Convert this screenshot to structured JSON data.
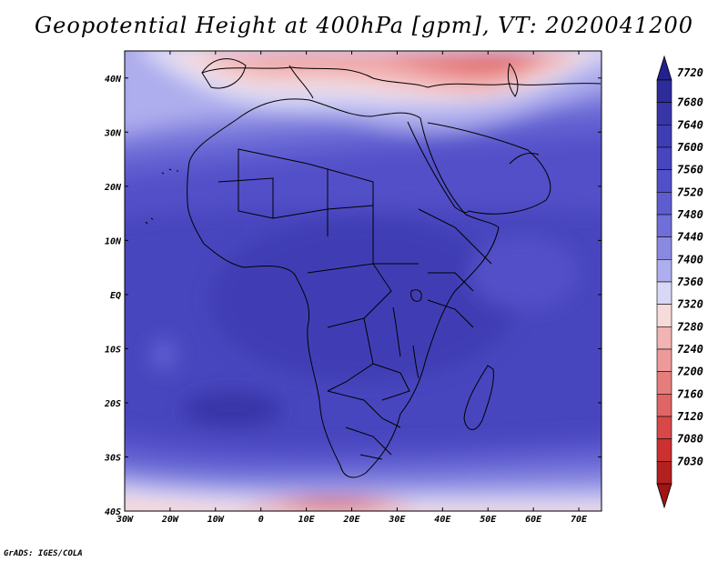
{
  "title": "Geopotential Height at 400hPa [gpm], VT: 2020041200",
  "credit": "GrADS: IGES/COLA",
  "map": {
    "lon_range": [
      -30,
      75
    ],
    "lat_range": [
      -40,
      45
    ],
    "lon_ticks": [
      {
        "value": -30,
        "label": "30W"
      },
      {
        "value": -20,
        "label": "20W"
      },
      {
        "value": -10,
        "label": "10W"
      },
      {
        "value": 0,
        "label": "0"
      },
      {
        "value": 10,
        "label": "10E"
      },
      {
        "value": 20,
        "label": "20E"
      },
      {
        "value": 30,
        "label": "30E"
      },
      {
        "value": 40,
        "label": "40E"
      },
      {
        "value": 50,
        "label": "50E"
      },
      {
        "value": 60,
        "label": "60E"
      },
      {
        "value": 70,
        "label": "70E"
      }
    ],
    "lat_ticks": [
      {
        "value": 40,
        "label": "40N"
      },
      {
        "value": 30,
        "label": "30N"
      },
      {
        "value": 20,
        "label": "20N"
      },
      {
        "value": 10,
        "label": "10N"
      },
      {
        "value": 0,
        "label": "EQ"
      },
      {
        "value": -10,
        "label": "10S"
      },
      {
        "value": -20,
        "label": "20S"
      },
      {
        "value": -30,
        "label": "30S"
      },
      {
        "value": -40,
        "label": "40S"
      }
    ]
  },
  "colorbar": {
    "levels": [
      {
        "label": "7720",
        "color": "#2e2c9a"
      },
      {
        "label": "7680",
        "color": "#3735a8"
      },
      {
        "label": "7640",
        "color": "#3f3db4"
      },
      {
        "label": "7600",
        "color": "#4846be"
      },
      {
        "label": "7560",
        "color": "#5250c8"
      },
      {
        "label": "7520",
        "color": "#5e5dd0"
      },
      {
        "label": "7480",
        "color": "#706fd8"
      },
      {
        "label": "7440",
        "color": "#8a89e1"
      },
      {
        "label": "7400",
        "color": "#aeaded"
      },
      {
        "label": "7360",
        "color": "#d8d8f6"
      },
      {
        "label": "7320",
        "color": "#f7dada"
      },
      {
        "label": "7280",
        "color": "#f2b3b3"
      },
      {
        "label": "7240",
        "color": "#ed9a9a"
      },
      {
        "label": "7200",
        "color": "#e67d7d"
      },
      {
        "label": "7160",
        "color": "#e06565"
      },
      {
        "label": "7120",
        "color": "#d94848"
      },
      {
        "label": "7080",
        "color": "#cc3030"
      },
      {
        "label": "7030",
        "color": "#b41f1f"
      }
    ],
    "top_triangle_color": "#23218c",
    "bottom_triangle_color": "#a01515"
  }
}
